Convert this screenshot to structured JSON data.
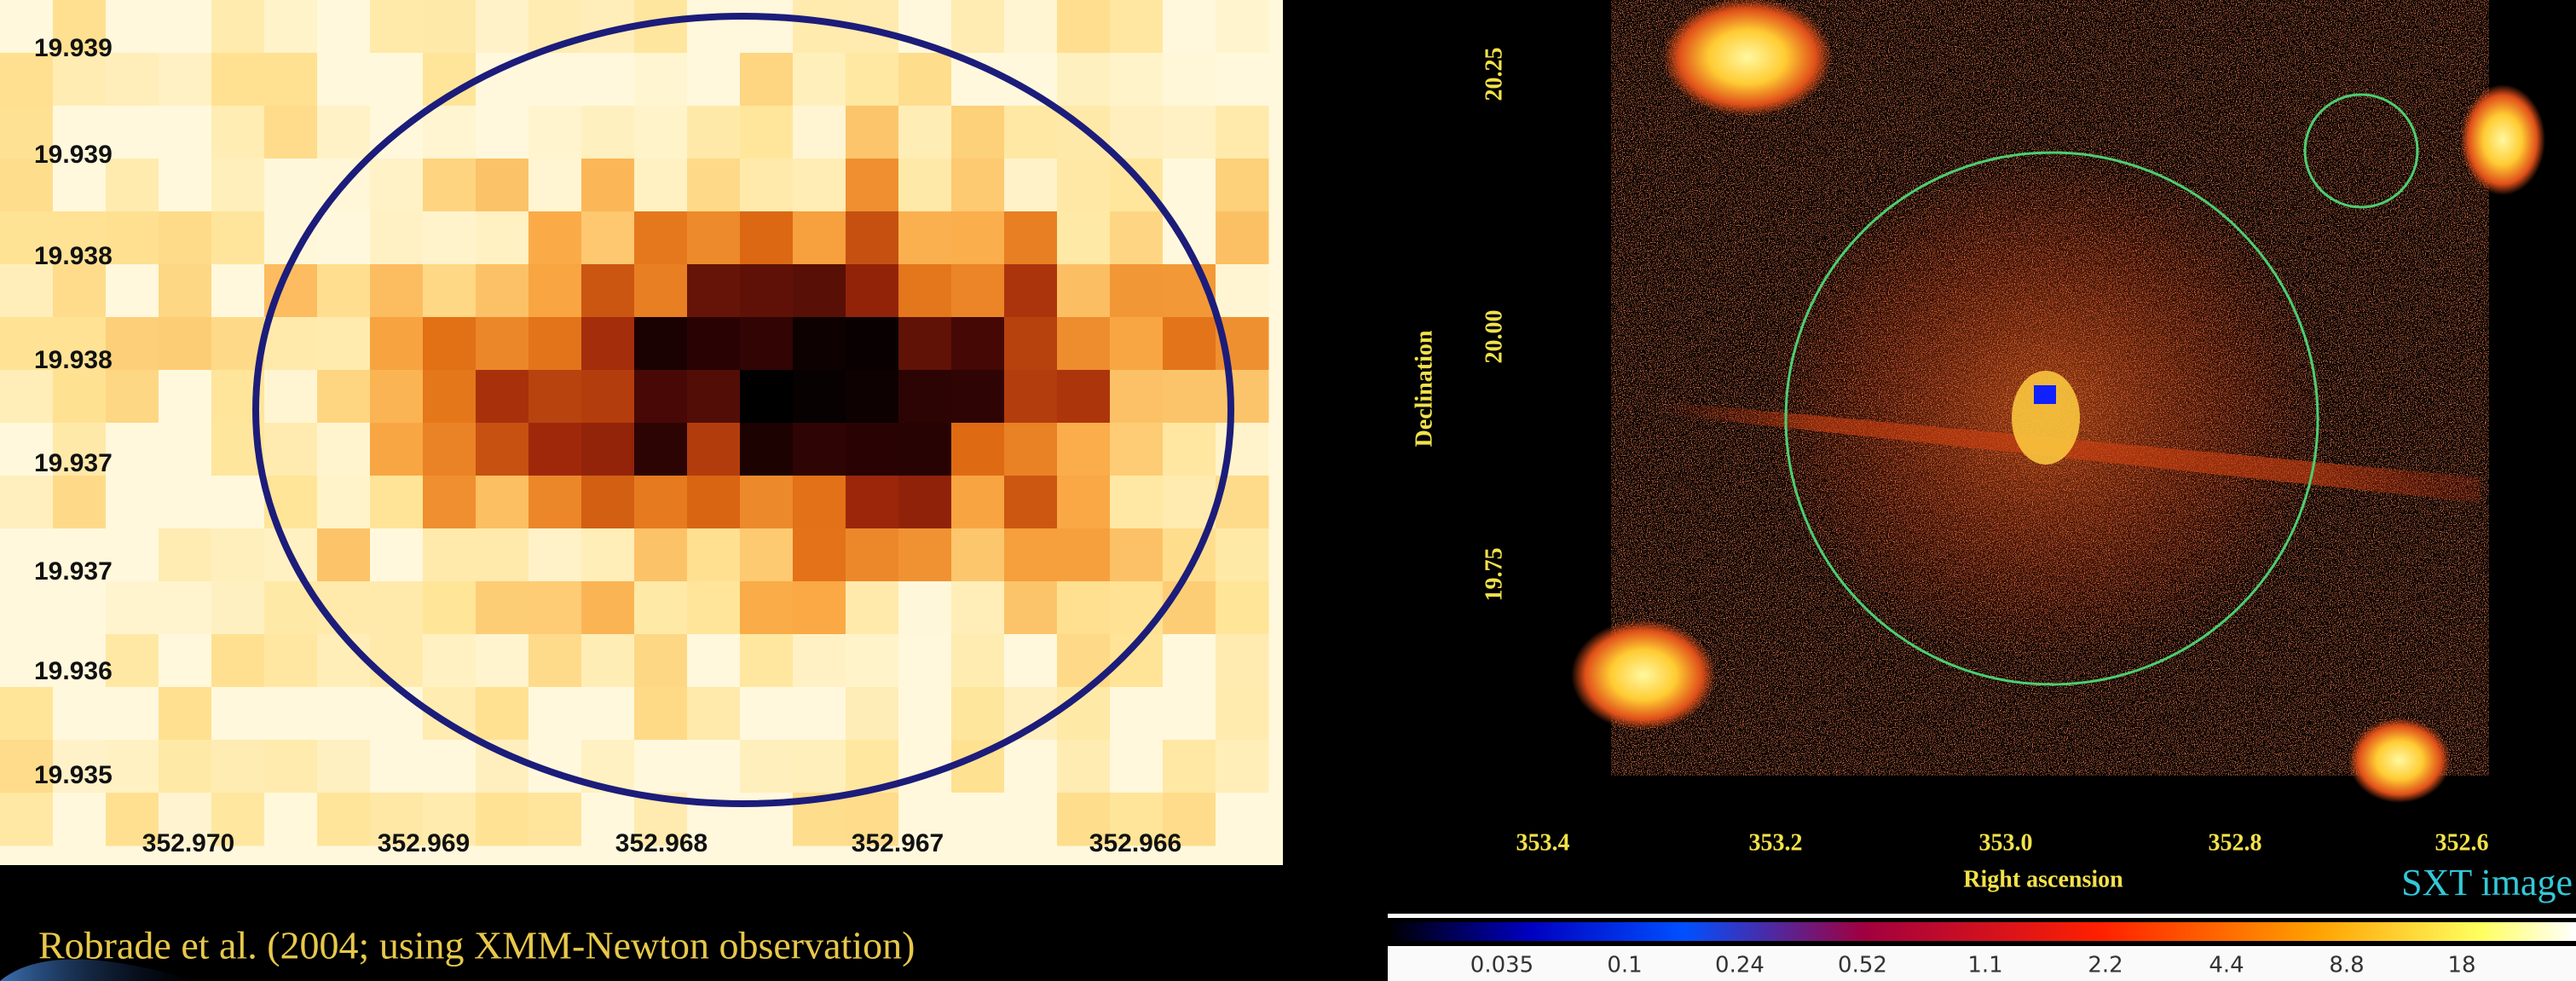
{
  "left_panel": {
    "y_tick_labels": [
      "19.939",
      "19.939",
      "19.938",
      "19.938",
      "19.937",
      "19.937",
      "19.936",
      "19.935"
    ],
    "x_tick_labels": [
      "352.970",
      "352.969",
      "352.968",
      "352.967",
      "352.966"
    ],
    "caption": "Robrade et al. (2004; using XMM-Newton observation)"
  },
  "right_panel": {
    "y_axis_label": "Declination",
    "y_tick_labels": [
      "20.25",
      "20.00",
      "19.75"
    ],
    "x_axis_label": "Right ascension",
    "x_tick_labels": [
      "353.4",
      "353.2",
      "353.0",
      "352.8",
      "352.6"
    ],
    "image_label": "SXT image",
    "colorbar_labels": [
      "0.035",
      "0.1",
      "0.24",
      "0.52",
      "1.1",
      "2.2",
      "4.4",
      "8.8",
      "18"
    ]
  }
}
